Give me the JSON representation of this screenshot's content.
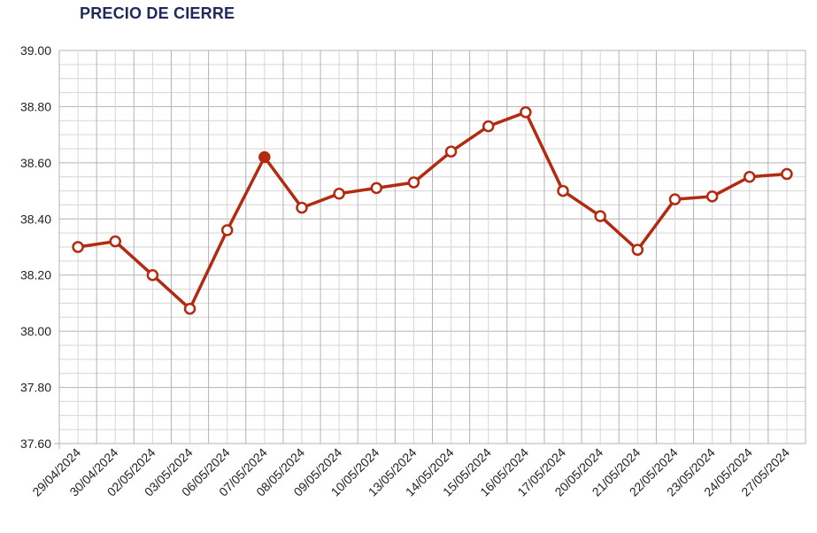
{
  "chart_data": {
    "type": "line",
    "title": "PRECIO DE CIERRE",
    "xlabel": "",
    "ylabel": "",
    "categories": [
      "29/04/2024",
      "30/04/2024",
      "02/05/2024",
      "03/05/2024",
      "06/05/2024",
      "07/05/2024",
      "08/05/2024",
      "09/05/2024",
      "10/05/2024",
      "13/05/2024",
      "14/05/2024",
      "15/05/2024",
      "16/05/2024",
      "17/05/2024",
      "20/05/2024",
      "21/05/2024",
      "22/05/2024",
      "23/05/2024",
      "24/05/2024",
      "27/05/2024"
    ],
    "series": [
      {
        "values": [
          38.3,
          38.32,
          38.2,
          38.08,
          38.36,
          38.62,
          38.44,
          38.49,
          38.51,
          38.53,
          38.64,
          38.73,
          38.78,
          38.5,
          38.41,
          38.29,
          38.47,
          38.48,
          38.55,
          38.56
        ],
        "highlight_index": 5
      }
    ],
    "ylim": [
      37.6,
      39.0
    ],
    "yticks": [
      "37.60",
      "37.80",
      "38.00",
      "38.20",
      "38.40",
      "38.60",
      "38.80",
      "39.00"
    ],
    "grid": true,
    "legend": "none",
    "colors": {
      "line": "#b22a10",
      "marker_fill": "#ffffff",
      "title": "#1f2a5a",
      "grid_major": "#b3b3b3",
      "grid_minor": "#d6d6d6"
    }
  }
}
